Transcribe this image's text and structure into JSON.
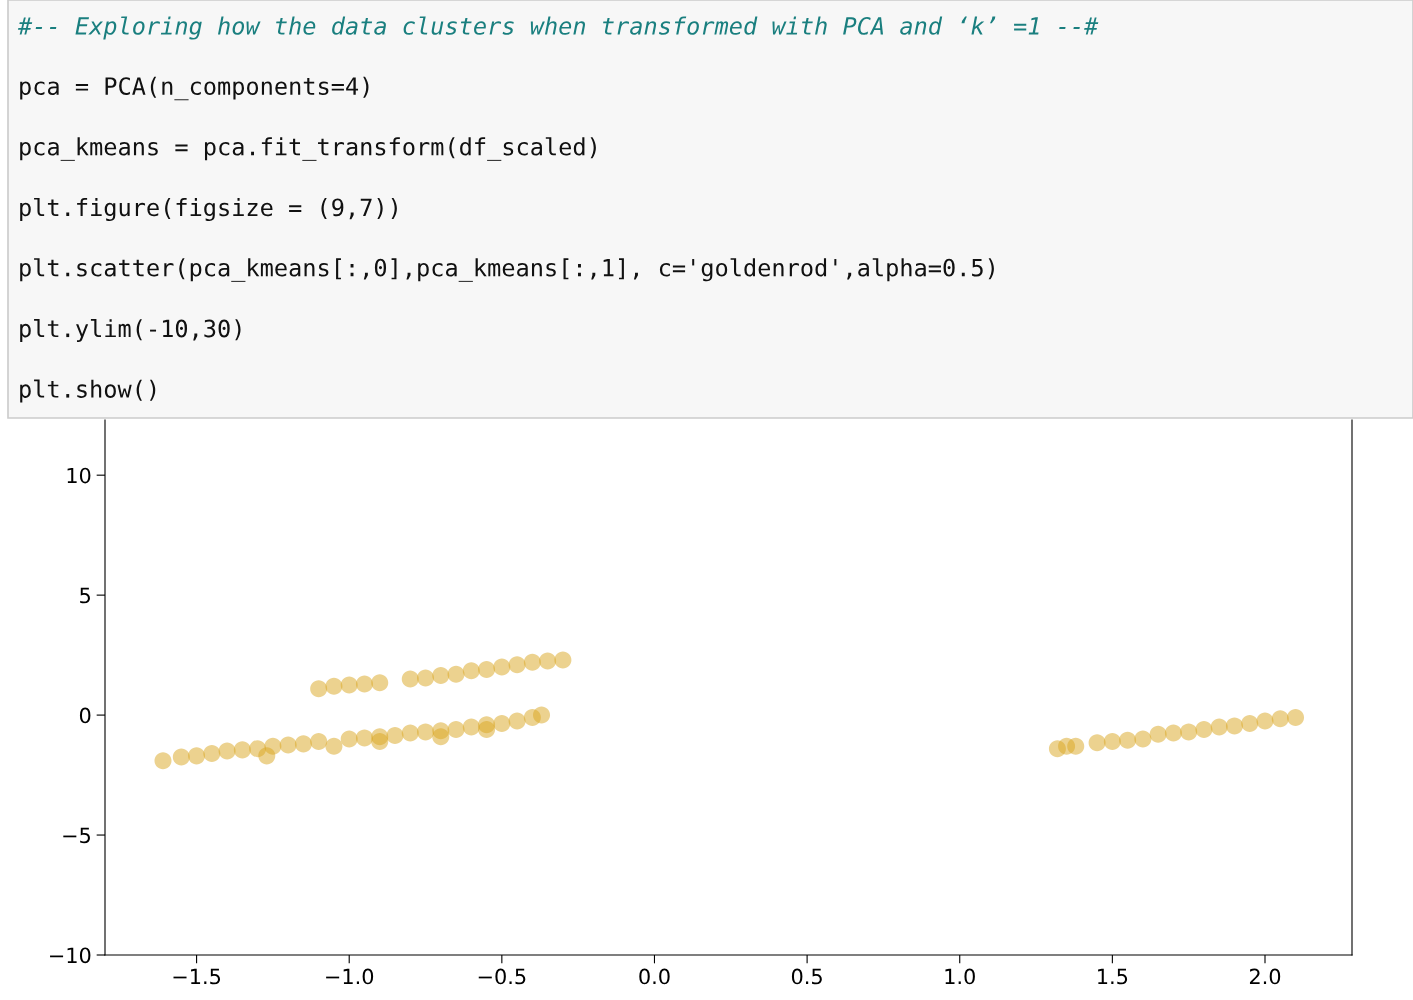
{
  "chart_data": {
    "type": "scatter",
    "color": "#daa520",
    "annotations": [
      "#-- Exploring how the data clusters when transformed with PCA and ‘k’ =1 --#",
      "pca = PCA(n_components=4)",
      "pca_kmeans = pca.fit_transform(df_scaled)",
      "plt.figure(figsize = (9,7))",
      "plt.scatter(pca_kmeans[:,0],pca_kmeans[:,1], c='goldenrod',alpha=0.5)",
      "plt.ylim(-10,30)",
      "plt.show()"
    ],
    "x": [
      -1.61,
      -1.55,
      -1.5,
      -1.45,
      -1.4,
      -1.35,
      -1.3,
      -1.25,
      -1.27,
      -1.2,
      -1.15,
      -1.1,
      -1.05,
      -1.0,
      -0.95,
      -0.9,
      -0.85,
      -0.8,
      -0.75,
      -0.7,
      -0.65,
      -0.6,
      -0.55,
      -0.5,
      -0.45,
      -0.4,
      -0.37,
      -0.9,
      -0.7,
      -0.55,
      -1.1,
      -1.05,
      -1.0,
      -0.95,
      -0.9,
      -0.8,
      -0.75,
      -0.7,
      -0.65,
      -0.6,
      -0.55,
      -0.5,
      -0.45,
      -0.4,
      -0.35,
      -0.3,
      1.32,
      1.35,
      1.38,
      1.45,
      1.5,
      1.55,
      1.6,
      1.65,
      1.7,
      1.75,
      1.8,
      1.85,
      1.9,
      1.95,
      2.0,
      2.05,
      2.1
    ],
    "values": [
      -1.9,
      -1.75,
      -1.7,
      -1.6,
      -1.5,
      -1.45,
      -1.4,
      -1.3,
      -1.7,
      -1.25,
      -1.2,
      -1.1,
      -1.3,
      -1.0,
      -0.95,
      -0.9,
      -0.85,
      -0.75,
      -0.7,
      -0.65,
      -0.6,
      -0.5,
      -0.4,
      -0.35,
      -0.25,
      -0.1,
      0.0,
      -1.1,
      -0.9,
      -0.6,
      1.1,
      1.2,
      1.25,
      1.3,
      1.35,
      1.5,
      1.55,
      1.65,
      1.7,
      1.85,
      1.9,
      2.0,
      2.1,
      2.2,
      2.25,
      2.3,
      -1.4,
      -1.3,
      -1.3,
      -1.15,
      -1.1,
      -1.05,
      -1.0,
      -0.8,
      -0.75,
      -0.7,
      -0.6,
      -0.5,
      -0.45,
      -0.35,
      -0.25,
      -0.15,
      -0.1
    ],
    "xlim": [
      -1.8,
      2.285
    ],
    "ylim": [
      -10,
      12.3
    ],
    "xticks": [
      {
        "value": -1.5,
        "label": "−1.5"
      },
      {
        "value": -1.0,
        "label": "−1.0"
      },
      {
        "value": -0.5,
        "label": "−0.5"
      },
      {
        "value": 0.0,
        "label": "0.0"
      },
      {
        "value": 0.5,
        "label": "0.5"
      },
      {
        "value": 1.0,
        "label": "1.0"
      },
      {
        "value": 1.5,
        "label": "1.5"
      },
      {
        "value": 2.0,
        "label": "2.0"
      }
    ],
    "yticks": [
      {
        "value": -10,
        "label": "−10"
      },
      {
        "value": -5,
        "label": "−5"
      },
      0,
      5,
      10
    ],
    "grid": false,
    "marker": "circle"
  }
}
